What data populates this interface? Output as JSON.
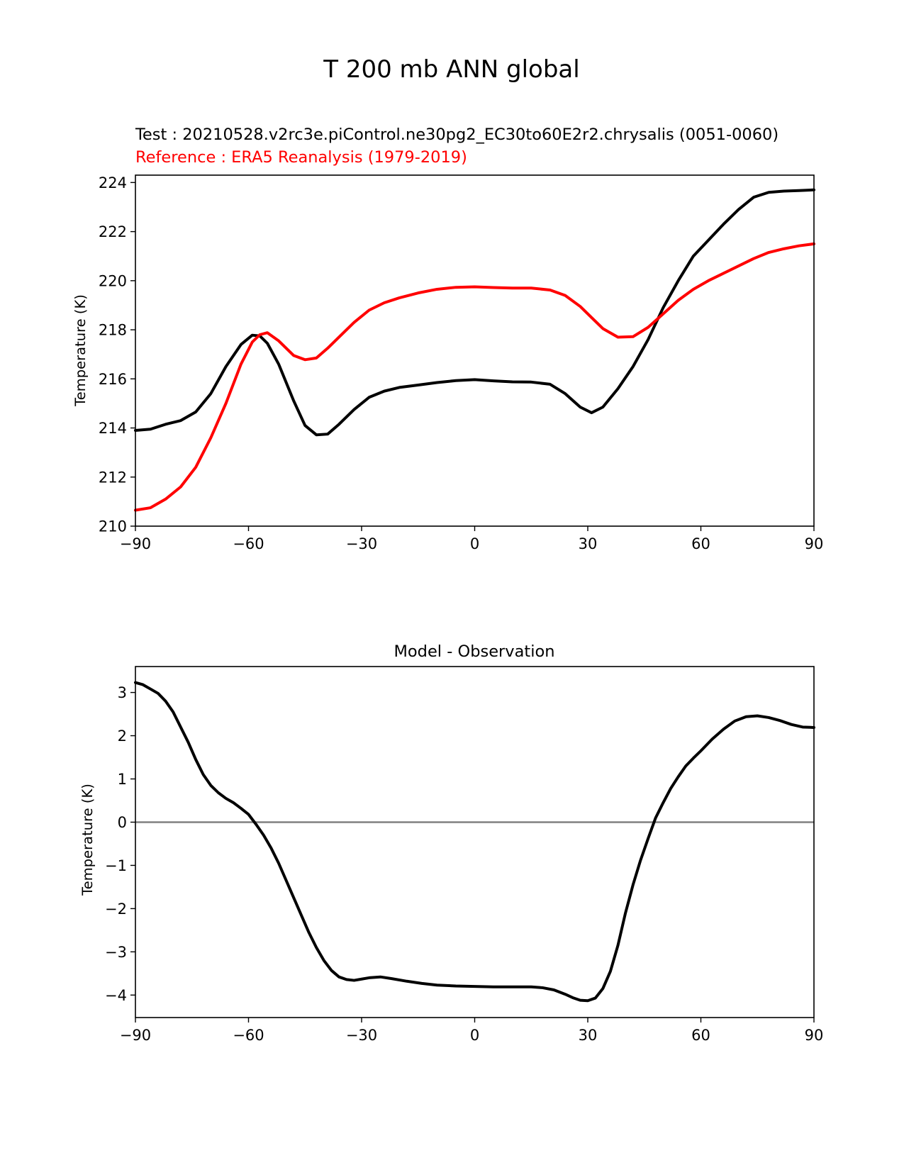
{
  "figure": {
    "title": "T 200 mb ANN global"
  },
  "chart_data": [
    {
      "type": "line",
      "test_label": "Test : 20210528.v2rc3e.piControl.ne30pg2_EC30to60E2r2.chrysalis (0051-0060)",
      "reference_label": "Reference : ERA5 Reanalysis (1979-2019)",
      "xlabel": "",
      "ylabel": "Temperature (K)",
      "xlim": [
        -90,
        90
      ],
      "ylim": [
        210,
        224.3
      ],
      "xticks": [
        -90,
        -60,
        -30,
        0,
        30,
        60,
        90
      ],
      "xtick_labels": [
        "−90",
        "−60",
        "−30",
        "0",
        "30",
        "60",
        "90"
      ],
      "yticks": [
        210,
        212,
        214,
        216,
        218,
        220,
        222,
        224
      ],
      "ytick_labels": [
        "210",
        "212",
        "214",
        "216",
        "218",
        "220",
        "222",
        "224"
      ],
      "x": [
        -90,
        -86,
        -82,
        -78,
        -74,
        -70,
        -66,
        -62,
        -59,
        -57,
        -55,
        -52,
        -48,
        -45,
        -42,
        -39,
        -36,
        -32,
        -28,
        -24,
        -20,
        -15,
        -10,
        -5,
        0,
        5,
        10,
        15,
        20,
        24,
        28,
        31,
        34,
        38,
        42,
        46,
        50,
        54,
        58,
        62,
        66,
        70,
        74,
        78,
        82,
        86,
        90
      ],
      "series": [
        {
          "name": "Test",
          "color": "#000000",
          "values": [
            213.9,
            213.95,
            214.15,
            214.3,
            214.65,
            215.4,
            216.5,
            217.4,
            217.78,
            217.75,
            217.45,
            216.6,
            215.1,
            214.1,
            213.72,
            213.75,
            214.15,
            214.75,
            215.25,
            215.5,
            215.65,
            215.75,
            215.85,
            215.93,
            215.97,
            215.92,
            215.88,
            215.87,
            215.78,
            215.4,
            214.85,
            214.62,
            214.85,
            215.6,
            216.5,
            217.6,
            218.9,
            220.0,
            221.0,
            221.65,
            222.3,
            222.9,
            223.4,
            223.6,
            223.65,
            223.67,
            223.7
          ]
        },
        {
          "name": "Reference",
          "color": "#ff0000",
          "values": [
            210.65,
            210.75,
            211.1,
            211.6,
            212.4,
            213.6,
            215.0,
            216.6,
            217.5,
            217.8,
            217.88,
            217.55,
            216.95,
            216.78,
            216.85,
            217.25,
            217.7,
            218.3,
            218.8,
            219.1,
            219.3,
            219.5,
            219.65,
            219.73,
            219.75,
            219.72,
            219.7,
            219.7,
            219.62,
            219.4,
            218.95,
            218.5,
            218.05,
            217.7,
            217.72,
            218.1,
            218.65,
            219.2,
            219.65,
            220.0,
            220.3,
            220.6,
            220.9,
            221.15,
            221.3,
            221.42,
            221.5
          ]
        }
      ]
    },
    {
      "type": "line",
      "title": "Model - Observation",
      "xlabel": "",
      "ylabel": "Temperature (K)",
      "xlim": [
        -90,
        90
      ],
      "ylim": [
        -4.52,
        3.6
      ],
      "xticks": [
        -90,
        -60,
        -30,
        0,
        30,
        60,
        90
      ],
      "xtick_labels": [
        "−90",
        "−60",
        "−30",
        "0",
        "30",
        "60",
        "90"
      ],
      "yticks": [
        -4,
        -3,
        -2,
        -1,
        0,
        1,
        2,
        3
      ],
      "ytick_labels": [
        "−4",
        "−3",
        "−2",
        "−1",
        "0",
        "1",
        "2",
        "3"
      ],
      "zero_line": {
        "value": 0,
        "color": "#808080"
      },
      "x": [
        -90,
        -88,
        -86,
        -84,
        -82,
        -80,
        -78,
        -76,
        -74,
        -72,
        -70,
        -68,
        -66,
        -64,
        -62,
        -60,
        -58,
        -56,
        -54,
        -52,
        -50,
        -48,
        -46,
        -44,
        -42,
        -40,
        -38,
        -36,
        -34,
        -32,
        -30,
        -28,
        -25,
        -22,
        -18,
        -14,
        -10,
        -5,
        0,
        5,
        10,
        15,
        18,
        21,
        24,
        26,
        28,
        30,
        32,
        34,
        36,
        38,
        40,
        42,
        44,
        46,
        48,
        50,
        52,
        54,
        56,
        58,
        60,
        63,
        66,
        69,
        72,
        75,
        78,
        81,
        84,
        87,
        90
      ],
      "series": [
        {
          "name": "Model - Observation",
          "color": "#000000",
          "values": [
            3.23,
            3.18,
            3.08,
            2.98,
            2.8,
            2.55,
            2.2,
            1.85,
            1.45,
            1.1,
            0.85,
            0.68,
            0.55,
            0.45,
            0.32,
            0.18,
            -0.05,
            -0.3,
            -0.6,
            -0.95,
            -1.35,
            -1.75,
            -2.15,
            -2.55,
            -2.9,
            -3.2,
            -3.43,
            -3.58,
            -3.64,
            -3.66,
            -3.63,
            -3.6,
            -3.58,
            -3.62,
            -3.68,
            -3.73,
            -3.77,
            -3.79,
            -3.8,
            -3.81,
            -3.81,
            -3.81,
            -3.83,
            -3.88,
            -3.98,
            -4.06,
            -4.12,
            -4.13,
            -4.07,
            -3.85,
            -3.45,
            -2.85,
            -2.1,
            -1.45,
            -0.88,
            -0.38,
            0.1,
            0.45,
            0.78,
            1.05,
            1.3,
            1.48,
            1.65,
            1.92,
            2.15,
            2.34,
            2.44,
            2.46,
            2.42,
            2.35,
            2.26,
            2.2,
            2.19
          ]
        }
      ]
    }
  ]
}
